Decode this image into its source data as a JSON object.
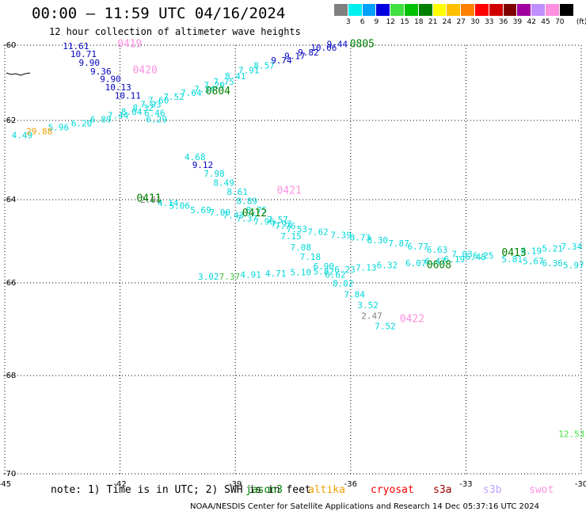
{
  "title": "00:00 – 11:59 UTC 04/16/2024",
  "subtitle": "12 hour collection of altimeter wave heights",
  "colorbar": {
    "labels": [
      "3",
      "6",
      "9",
      "12",
      "15",
      "18",
      "21",
      "24",
      "27",
      "30",
      "33",
      "36",
      "39",
      "42",
      "45",
      "70"
    ],
    "unit": "(ft)",
    "colors": [
      "#808080",
      "#00f0f0",
      "#00a0ff",
      "#0000e0",
      "#40e040",
      "#00c000",
      "#008000",
      "#ffff00",
      "#ffc000",
      "#ff8000",
      "#ff0000",
      "#d00000",
      "#800000",
      "#a000a0",
      "#c090ff",
      "#ff90e0",
      "#000000"
    ]
  },
  "axes": {
    "lon_ticks": [
      "-45",
      "-42",
      "-39",
      "-36",
      "-33",
      "-30"
    ],
    "lat_ticks": [
      "-60",
      "-62",
      "-64",
      "-66",
      "-68",
      "-70"
    ]
  },
  "chart_data": {
    "type": "scatter",
    "title": "00:00 – 11:59 UTC 04/16/2024",
    "xlim": [
      -45,
      -30
    ],
    "ylim": [
      -70,
      -60
    ],
    "grid": true,
    "points": [
      {
        "lon": -43.15,
        "lat": -60.1,
        "label": "11.61",
        "color": "#0000c0"
      },
      {
        "lon": -42.95,
        "lat": -60.32,
        "label": "10.71",
        "color": "#0000c0"
      },
      {
        "lon": -42.8,
        "lat": -60.55,
        "label": "9.90",
        "color": "#0000c0"
      },
      {
        "lon": -42.5,
        "lat": -60.78,
        "label": "9.36",
        "color": "#0000c0"
      },
      {
        "lon": -42.25,
        "lat": -60.98,
        "label": "9.90",
        "color": "#0000c0"
      },
      {
        "lon": -42.05,
        "lat": -61.2,
        "label": "10.13",
        "color": "#0000c0"
      },
      {
        "lon": -41.8,
        "lat": -61.42,
        "label": "10.11",
        "color": "#0000c0"
      },
      {
        "lon": -44.55,
        "lat": -62.45,
        "label": "4.49",
        "color": "#00d8d8"
      },
      {
        "lon": -44.1,
        "lat": -62.35,
        "label": "29.88",
        "color": "#f0a000"
      },
      {
        "lon": -43.6,
        "lat": -62.25,
        "label": "5.96",
        "color": "#00d8d8"
      },
      {
        "lon": -43.0,
        "lat": -62.15,
        "label": "6.20",
        "color": "#00d8d8"
      },
      {
        "lon": -42.5,
        "lat": -62.05,
        "label": "6.89",
        "color": "#00d8d8"
      },
      {
        "lon": -42.05,
        "lat": -61.95,
        "label": "7.44",
        "color": "#00d8d8"
      },
      {
        "lon": -41.7,
        "lat": -61.85,
        "label": "8.04",
        "color": "#00d8d8"
      },
      {
        "lon": -41.4,
        "lat": -61.75,
        "label": "8.32",
        "color": "#00d8d8"
      },
      {
        "lon": -41.2,
        "lat": -61.65,
        "label": "7.93",
        "color": "#00d8d8"
      },
      {
        "lon": -41.0,
        "lat": -61.55,
        "label": "7.60",
        "color": "#00d8d8"
      },
      {
        "lon": -40.6,
        "lat": -61.45,
        "label": "7.52",
        "color": "#00d8d8"
      },
      {
        "lon": -40.15,
        "lat": -61.35,
        "label": "7.64",
        "color": "#00d8d8"
      },
      {
        "lon": -39.8,
        "lat": -61.25,
        "label": "7.24",
        "color": "#00d8d8"
      },
      {
        "lon": -39.55,
        "lat": -61.15,
        "label": "7.29",
        "color": "#00d8d8"
      },
      {
        "lon": -39.3,
        "lat": -61.05,
        "label": "7.75",
        "color": "#00d8d8"
      },
      {
        "lon": -39.0,
        "lat": -60.9,
        "label": "8.41",
        "color": "#00d8d8"
      },
      {
        "lon": -38.65,
        "lat": -60.75,
        "label": "7.91",
        "color": "#00d8d8"
      },
      {
        "lon": -38.25,
        "lat": -60.62,
        "label": "8.57",
        "color": "#00d8d8"
      },
      {
        "lon": -37.8,
        "lat": -60.48,
        "label": "9.74",
        "color": "#0000c0"
      },
      {
        "lon": -37.45,
        "lat": -60.37,
        "label": "9.17",
        "color": "#0000c0"
      },
      {
        "lon": -37.1,
        "lat": -60.27,
        "label": "9.82",
        "color": "#0000c0"
      },
      {
        "lon": -36.7,
        "lat": -60.15,
        "label": "10.06",
        "color": "#0000c0"
      },
      {
        "lon": -36.35,
        "lat": -60.05,
        "label": "9.44",
        "color": "#0000c0"
      },
      {
        "lon": -41.1,
        "lat": -61.88,
        "label": "6.46",
        "color": "#00d8d8"
      },
      {
        "lon": -41.05,
        "lat": -62.05,
        "label": "6.29",
        "color": "#00d8d8"
      },
      {
        "lon": -40.05,
        "lat": -63.0,
        "label": "4.68",
        "color": "#00d8d8"
      },
      {
        "lon": -39.85,
        "lat": -63.2,
        "label": "9.12",
        "color": "#0000c0"
      },
      {
        "lon": -39.55,
        "lat": -63.42,
        "label": "7.98",
        "color": "#00d8d8"
      },
      {
        "lon": -39.3,
        "lat": -63.65,
        "label": "8.49",
        "color": "#00d8d8"
      },
      {
        "lon": -38.95,
        "lat": -63.88,
        "label": "8.61",
        "color": "#00d8d8"
      },
      {
        "lon": -38.7,
        "lat": -64.1,
        "label": "8.89",
        "color": "#00d8d8"
      },
      {
        "lon": -38.45,
        "lat": -64.32,
        "label": "8.75",
        "color": "#00d8d8"
      },
      {
        "lon": -37.9,
        "lat": -64.55,
        "label": "7.57",
        "color": "#00d8d8"
      },
      {
        "lon": -37.7,
        "lat": -64.7,
        "label": "7.76",
        "color": "#00d8d8"
      },
      {
        "lon": -37.4,
        "lat": -64.78,
        "label": "7.53",
        "color": "#00d8d8"
      },
      {
        "lon": -36.85,
        "lat": -64.85,
        "label": "7.62",
        "color": "#00d8d8"
      },
      {
        "lon": -36.25,
        "lat": -64.92,
        "label": "7.39",
        "color": "#00d8d8"
      },
      {
        "lon": -35.75,
        "lat": -64.98,
        "label": "8.73",
        "color": "#00d8d8"
      },
      {
        "lon": -35.3,
        "lat": -65.05,
        "label": "8.30",
        "color": "#00d8d8"
      },
      {
        "lon": -34.75,
        "lat": -65.12,
        "label": "7.87",
        "color": "#00d8d8"
      },
      {
        "lon": -34.25,
        "lat": -65.2,
        "label": "6.77",
        "color": "#00d8d8"
      },
      {
        "lon": -33.75,
        "lat": -65.28,
        "label": "6.63",
        "color": "#00d8d8"
      },
      {
        "lon": -33.1,
        "lat": -65.38,
        "label": "7.03",
        "color": "#00d8d8"
      },
      {
        "lon": -32.55,
        "lat": -65.42,
        "label": "6.25",
        "color": "#00d8d8"
      },
      {
        "lon": -31.3,
        "lat": -65.3,
        "label": "6.19",
        "color": "#00d8d8"
      },
      {
        "lon": -30.75,
        "lat": -65.25,
        "label": "5.21",
        "color": "#00d8d8"
      },
      {
        "lon": -30.25,
        "lat": -65.2,
        "label": "7.34",
        "color": "#00d8d8"
      },
      {
        "lon": -41.2,
        "lat": -64.08,
        "label": "2.01",
        "color": "#808080"
      },
      {
        "lon": -40.75,
        "lat": -64.15,
        "label": "4.14",
        "color": "#00d8d8"
      },
      {
        "lon": -40.45,
        "lat": -64.22,
        "label": "5.06",
        "color": "#00d8d8"
      },
      {
        "lon": -39.9,
        "lat": -64.32,
        "label": "5.69",
        "color": "#00d8d8"
      },
      {
        "lon": -39.4,
        "lat": -64.38,
        "label": "7.00",
        "color": "#00d8d8"
      },
      {
        "lon": -39.05,
        "lat": -64.45,
        "label": "7.43",
        "color": "#00d8d8"
      },
      {
        "lon": -38.7,
        "lat": -64.52,
        "label": "7.37",
        "color": "#00d8d8"
      },
      {
        "lon": -38.25,
        "lat": -64.6,
        "label": "7.96",
        "color": "#00d8d8"
      },
      {
        "lon": -37.8,
        "lat": -64.66,
        "label": "7.97",
        "color": "#00d8d8"
      },
      {
        "lon": -37.55,
        "lat": -64.95,
        "label": "7.15",
        "color": "#00d8d8"
      },
      {
        "lon": -37.3,
        "lat": -65.22,
        "label": "7.08",
        "color": "#00d8d8"
      },
      {
        "lon": -37.05,
        "lat": -65.45,
        "label": "7.18",
        "color": "#00d8d8"
      },
      {
        "lon": -36.7,
        "lat": -65.68,
        "label": "6.90",
        "color": "#00d8d8"
      },
      {
        "lon": -36.4,
        "lat": -65.88,
        "label": "6.62",
        "color": "#00d8d8"
      },
      {
        "lon": -36.2,
        "lat": -66.08,
        "label": "8.02",
        "color": "#00d8d8"
      },
      {
        "lon": -35.9,
        "lat": -66.32,
        "label": "7.84",
        "color": "#00d8d8"
      },
      {
        "lon": -35.55,
        "lat": -66.55,
        "label": "3.52",
        "color": "#00d8d8"
      },
      {
        "lon": -35.45,
        "lat": -66.78,
        "label": "2.47",
        "color": "#808080"
      },
      {
        "lon": -35.1,
        "lat": -67.0,
        "label": "7.52",
        "color": "#00d8d8"
      },
      {
        "lon": -39.7,
        "lat": -65.92,
        "label": "3.02",
        "color": "#00d8d8"
      },
      {
        "lon": -39.15,
        "lat": -65.92,
        "label": "7.37",
        "color": "#40c040"
      },
      {
        "lon": -38.6,
        "lat": -65.88,
        "label": "4.91",
        "color": "#00d8d8"
      },
      {
        "lon": -37.95,
        "lat": -65.85,
        "label": "4.71",
        "color": "#00d8d8"
      },
      {
        "lon": -37.3,
        "lat": -65.82,
        "label": "5.10",
        "color": "#00d8d8"
      },
      {
        "lon": -36.7,
        "lat": -65.8,
        "label": "5.82",
        "color": "#00d8d8"
      },
      {
        "lon": -36.15,
        "lat": -65.75,
        "label": "6.23",
        "color": "#00d8d8"
      },
      {
        "lon": -35.6,
        "lat": -65.7,
        "label": "7.13",
        "color": "#00d8d8"
      },
      {
        "lon": -35.05,
        "lat": -65.65,
        "label": "6.32",
        "color": "#00d8d8"
      },
      {
        "lon": -34.3,
        "lat": -65.6,
        "label": "6.07",
        "color": "#00d8d8"
      },
      {
        "lon": -33.8,
        "lat": -65.55,
        "label": "6.47",
        "color": "#00d8d8"
      },
      {
        "lon": -33.3,
        "lat": -65.5,
        "label": "6.19",
        "color": "#00d8d8"
      },
      {
        "lon": -32.75,
        "lat": -65.45,
        "label": "6.48",
        "color": "#00d8d8"
      },
      {
        "lon": -31.8,
        "lat": -65.5,
        "label": "5.81",
        "color": "#00d8d8"
      },
      {
        "lon": -31.25,
        "lat": -65.55,
        "label": "5.67",
        "color": "#00d8d8"
      },
      {
        "lon": -30.75,
        "lat": -65.6,
        "label": "6.36",
        "color": "#00d8d8"
      },
      {
        "lon": -30.2,
        "lat": -65.65,
        "label": "5.97",
        "color": "#00d8d8"
      },
      {
        "lon": -30.25,
        "lat": -69.25,
        "label": "12.53",
        "color": "#40e040"
      }
    ],
    "pass_labels": [
      {
        "lon": -41.75,
        "lat": -60.05,
        "text": "0419",
        "color": "#ff90e0"
      },
      {
        "lon": -41.35,
        "lat": -60.75,
        "text": "0420",
        "color": "#ff90e0"
      },
      {
        "lon": -39.45,
        "lat": -61.3,
        "text": "0804",
        "color": "#008000"
      },
      {
        "lon": -35.7,
        "lat": -60.05,
        "text": "0805",
        "color": "#008000"
      },
      {
        "lon": -41.25,
        "lat": -64.05,
        "text": "0411",
        "color": "#008000"
      },
      {
        "lon": -38.5,
        "lat": -64.4,
        "text": "0412",
        "color": "#008000"
      },
      {
        "lon": -37.6,
        "lat": -63.85,
        "text": "0421",
        "color": "#ff90e0"
      },
      {
        "lon": -33.7,
        "lat": -65.65,
        "text": "0608",
        "color": "#008000"
      },
      {
        "lon": -31.75,
        "lat": -65.35,
        "text": "0413",
        "color": "#008000"
      },
      {
        "lon": -34.4,
        "lat": -66.85,
        "text": "0422",
        "color": "#ff90e0"
      }
    ]
  },
  "footer": {
    "note": "note: 1) Time is in UTC; 2) SWH is in feet",
    "satellites": [
      {
        "name": "jason3",
        "color": "#008000"
      },
      {
        "name": "altika",
        "color": "#f0a000"
      },
      {
        "name": "cryosat",
        "color": "#ff0000"
      },
      {
        "name": "s3a",
        "color": "#a00000"
      },
      {
        "name": "s3b",
        "color": "#c0a0ff"
      },
      {
        "name": "swot",
        "color": "#ff90e0"
      }
    ],
    "credit": "NOAA/NESDIS Center for Satellite Applications and Research     14 Dec 05:37:16 UTC 2024"
  }
}
